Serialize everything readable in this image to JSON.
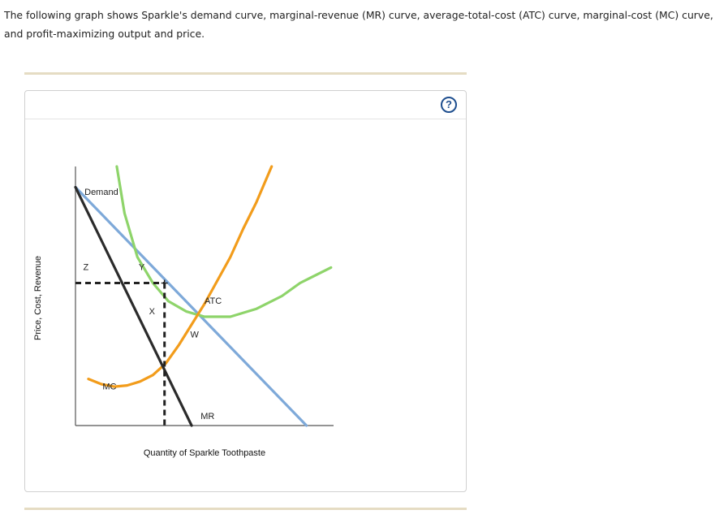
{
  "question": {
    "text": "The following graph shows Sparkle's demand curve, marginal-revenue (MR) curve, average-total-cost (ATC) curve, marginal-cost (MC) curve, and profit-maximizing output and price."
  },
  "help": {
    "label": "?"
  },
  "chart_data": {
    "type": "line",
    "title": "",
    "xlabel": "Quantity of Sparkle Toothpaste",
    "ylabel": "Price, Cost, Revenue",
    "xlim": [
      0,
      10
    ],
    "ylim": [
      0,
      10
    ],
    "grid": false,
    "series": [
      {
        "name": "Demand",
        "color": "#7ea9d9",
        "points": [
          [
            0,
            9.2
          ],
          [
            8.95,
            0
          ]
        ]
      },
      {
        "name": "MR",
        "color": "#2b2b2b",
        "points": [
          [
            0,
            9.2
          ],
          [
            4.5,
            0
          ]
        ]
      },
      {
        "name": "ATC",
        "color": "#8ed46a",
        "points": [
          [
            1.6,
            10
          ],
          [
            1.9,
            8.2
          ],
          [
            2.4,
            6.5
          ],
          [
            3.0,
            5.5
          ],
          [
            3.6,
            4.8
          ],
          [
            4.3,
            4.4
          ],
          [
            5.0,
            4.2
          ],
          [
            6.0,
            4.2
          ],
          [
            7.0,
            4.5
          ],
          [
            8.0,
            5.0
          ],
          [
            8.7,
            5.5
          ],
          [
            9.9,
            6.1
          ]
        ]
      },
      {
        "name": "MC",
        "color": "#f29c1b",
        "points": [
          [
            0.5,
            1.8
          ],
          [
            1.0,
            1.6
          ],
          [
            1.5,
            1.5
          ],
          [
            2.0,
            1.55
          ],
          [
            2.5,
            1.7
          ],
          [
            3.0,
            1.95
          ],
          [
            3.5,
            2.4
          ],
          [
            4.0,
            3.1
          ],
          [
            4.5,
            3.9
          ],
          [
            5.0,
            4.7
          ],
          [
            5.5,
            5.6
          ],
          [
            6.0,
            6.5
          ],
          [
            6.5,
            7.6
          ],
          [
            7.0,
            8.6
          ],
          [
            7.6,
            10.0
          ]
        ]
      }
    ],
    "profit_max": {
      "quantity": 3.45,
      "price": 5.5
    },
    "points": [
      {
        "label": "Z",
        "x": 0.3,
        "y": 6.0
      },
      {
        "label": "Y",
        "x": 2.45,
        "y": 6.0
      },
      {
        "label": "X",
        "x": 2.85,
        "y": 4.3
      },
      {
        "label": "W",
        "x": 4.45,
        "y": 3.4
      }
    ],
    "curve_labels": [
      {
        "label": "Demand",
        "x": 0.35,
        "y": 8.9
      },
      {
        "label": "ATC",
        "x": 5.0,
        "y": 4.7
      },
      {
        "label": "MC",
        "x": 1.05,
        "y": 1.4
      },
      {
        "label": "MR",
        "x": 4.85,
        "y": 0.25
      }
    ]
  }
}
